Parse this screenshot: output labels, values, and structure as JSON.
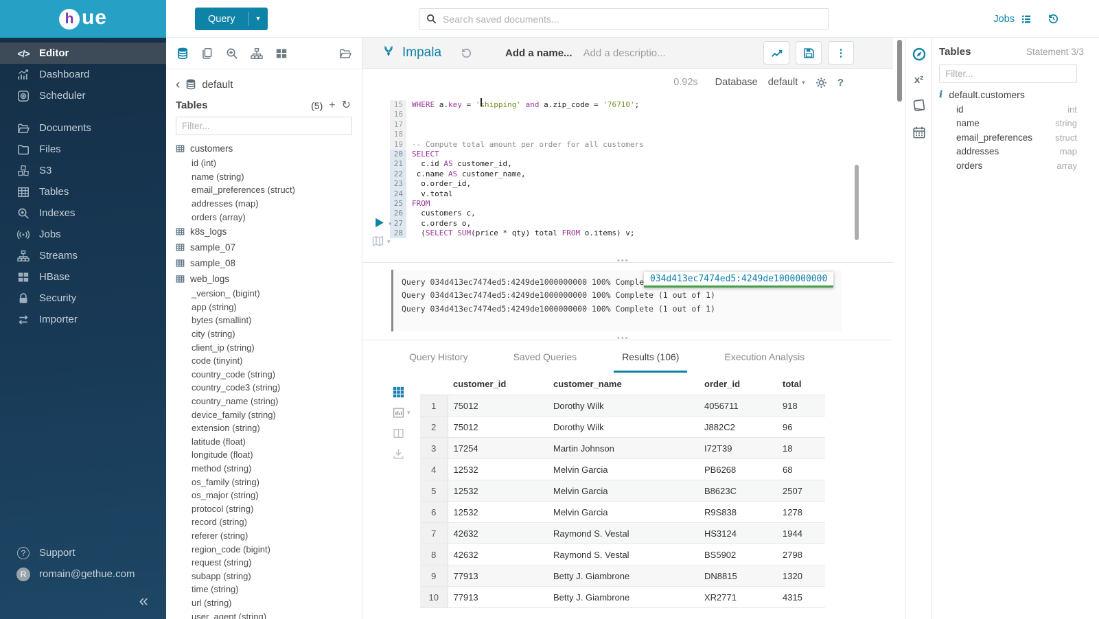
{
  "palette": {
    "brand_teal": "#27a0c5",
    "accent_blue": "#0f82a8",
    "logo_purple": "#7a3bb3",
    "sidebar_navy_top": "#152f47",
    "sidebar_navy_bottom": "#1d4765",
    "sql_keyword": "#9b359b",
    "sql_string": "#6f8f1f",
    "sql_comment": "#8c8c8c",
    "tooltip_underline_green": "#43a047"
  },
  "topbar": {
    "logo_mark": "h",
    "logo_text": "ue",
    "query_button_label": "Query",
    "search_placeholder": "Search saved documents...",
    "jobs_label": "Jobs"
  },
  "sidebar": {
    "items": [
      {
        "label": "Editor",
        "icon": "code-icon",
        "active": true
      },
      {
        "label": "Dashboard",
        "icon": "dashboard-icon"
      },
      {
        "label": "Scheduler",
        "icon": "scheduler-icon"
      },
      {
        "label": "Documents",
        "icon": "documents-icon",
        "group_start": true
      },
      {
        "label": "Files",
        "icon": "files-icon"
      },
      {
        "label": "S3",
        "icon": "s3-icon"
      },
      {
        "label": "Tables",
        "icon": "tables-icon"
      },
      {
        "label": "Indexes",
        "icon": "indexes-icon"
      },
      {
        "label": "Jobs",
        "icon": "jobs-broadcast-icon"
      },
      {
        "label": "Streams",
        "icon": "streams-icon"
      },
      {
        "label": "HBase",
        "icon": "hbase-icon"
      },
      {
        "label": "Security",
        "icon": "security-icon"
      },
      {
        "label": "Importer",
        "icon": "importer-icon"
      }
    ],
    "support_label": "Support",
    "user_initial": "R",
    "user_email": "romain@gethue.com"
  },
  "left_assist": {
    "database": "default",
    "tables_title": "Tables",
    "tables_count": "(5)",
    "filter_placeholder": "Filter...",
    "tables": [
      {
        "name": "customers",
        "columns": [
          "id (int)",
          "name (string)",
          "email_preferences (struct)",
          "addresses (map)",
          "orders (array)"
        ]
      },
      {
        "name": "k8s_logs",
        "columns": []
      },
      {
        "name": "sample_07",
        "columns": []
      },
      {
        "name": "sample_08",
        "columns": []
      },
      {
        "name": "web_logs",
        "columns": [
          "_version_ (bigint)",
          "app (string)",
          "bytes (smallint)",
          "city (string)",
          "client_ip (string)",
          "code (tinyint)",
          "country_code (string)",
          "country_code3 (string)",
          "country_name (string)",
          "device_family (string)",
          "extension (string)",
          "latitude (float)",
          "longitude (float)",
          "method (string)",
          "os_family (string)",
          "os_major (string)",
          "protocol (string)",
          "record (string)",
          "referer (string)",
          "region_code (bigint)",
          "request (string)",
          "subapp (string)",
          "time (string)",
          "url (string)",
          "user_agent (string)"
        ]
      }
    ]
  },
  "editor": {
    "engine": "Impala",
    "name_placeholder": "Add a name...",
    "description_placeholder": "Add a descriptio...",
    "duration": "0.92s",
    "database_label": "Database",
    "database_value": "default",
    "code_lines": [
      {
        "no": 15,
        "segs": [
          [
            "kw",
            "WHERE"
          ],
          [
            "tx",
            " a."
          ],
          [
            "kw",
            "key"
          ],
          [
            "tx",
            " = "
          ],
          [
            "str",
            "'shipping'"
          ],
          [
            "tx",
            " "
          ],
          [
            "kw",
            "and"
          ],
          [
            "tx",
            " a.zip_code = "
          ],
          [
            "str",
            "'76710'"
          ],
          [
            "tx",
            ";"
          ]
        ]
      },
      {
        "no": 16,
        "segs": []
      },
      {
        "no": 17,
        "segs": []
      },
      {
        "no": 18,
        "segs": []
      },
      {
        "no": 19,
        "segs": [
          [
            "com",
            "-- Compute total amount per order for all customers"
          ]
        ]
      },
      {
        "no": 20,
        "hl": true,
        "segs": [
          [
            "kw",
            "SELECT"
          ]
        ]
      },
      {
        "no": 21,
        "hl": true,
        "segs": [
          [
            "tx",
            "  c.id "
          ],
          [
            "kw",
            "AS"
          ],
          [
            "tx",
            " customer_id,"
          ]
        ]
      },
      {
        "no": 22,
        "hl": true,
        "segs": [
          [
            "tx",
            " c.name "
          ],
          [
            "kw",
            "AS"
          ],
          [
            "tx",
            " customer_name,"
          ]
        ]
      },
      {
        "no": 23,
        "hl": true,
        "segs": [
          [
            "tx",
            "  o.order_id,"
          ]
        ]
      },
      {
        "no": 24,
        "hl": true,
        "segs": [
          [
            "tx",
            "  v.total"
          ]
        ]
      },
      {
        "no": 25,
        "hl": true,
        "segs": [
          [
            "kw",
            "FROM"
          ]
        ]
      },
      {
        "no": 26,
        "hl": true,
        "segs": [
          [
            "tx",
            "  customers c,"
          ]
        ]
      },
      {
        "no": 27,
        "hl": true,
        "segs": [
          [
            "tx",
            "  c.orders o,"
          ]
        ]
      },
      {
        "no": 28,
        "hl": true,
        "segs": [
          [
            "tx",
            "  ("
          ],
          [
            "kw",
            "SELECT"
          ],
          [
            "tx",
            " "
          ],
          [
            "kw",
            "SUM"
          ],
          [
            "tx",
            "(price * qty) total "
          ],
          [
            "kw",
            "FROM"
          ],
          [
            "tx",
            " o.items) v;"
          ]
        ]
      }
    ]
  },
  "log": {
    "lines": [
      "Query 034d413ec7474ed5:4249de1000000000 100% Complete (1 out of 1)",
      "Query 034d413ec7474ed5:4249de1000000000 100% Complete (1 out of 1)",
      "Query 034d413ec7474ed5:4249de1000000000 100% Complete (1 out of 1)"
    ],
    "tooltip_link": "034d413ec7474ed5:4249de1000000000"
  },
  "tabs": {
    "items": [
      {
        "label": "Query History"
      },
      {
        "label": "Saved Queries"
      },
      {
        "label": "Results (106)",
        "active": true
      },
      {
        "label": "Execution Analysis"
      }
    ]
  },
  "results": {
    "columns": [
      "customer_id",
      "customer_name",
      "order_id",
      "total"
    ],
    "rows": [
      [
        "1",
        "75012",
        "Dorothy Wilk",
        "4056711",
        "918"
      ],
      [
        "2",
        "75012",
        "Dorothy Wilk",
        "J882C2",
        "96"
      ],
      [
        "3",
        "17254",
        "Martin Johnson",
        "I72T39",
        "18"
      ],
      [
        "4",
        "12532",
        "Melvin Garcia",
        "PB6268",
        "68"
      ],
      [
        "5",
        "12532",
        "Melvin Garcia",
        "B8623C",
        "2507"
      ],
      [
        "6",
        "12532",
        "Melvin Garcia",
        "R9S838",
        "1278"
      ],
      [
        "7",
        "42632",
        "Raymond S. Vestal",
        "HS3124",
        "1944"
      ],
      [
        "8",
        "42632",
        "Raymond S. Vestal",
        "BS5902",
        "2798"
      ],
      [
        "9",
        "77913",
        "Betty J. Giambrone",
        "DN8815",
        "1320"
      ],
      [
        "10",
        "77913",
        "Betty J. Giambrone",
        "XR2771",
        "4315"
      ]
    ]
  },
  "right_assist": {
    "title": "Tables",
    "statement": "Statement 3/3",
    "filter_placeholder": "Filter...",
    "table_name": "default.customers",
    "columns": [
      {
        "name": "id",
        "type": "int"
      },
      {
        "name": "name",
        "type": "string"
      },
      {
        "name": "email_preferences",
        "type": "struct"
      },
      {
        "name": "addresses",
        "type": "map"
      },
      {
        "name": "orders",
        "type": "array"
      }
    ]
  }
}
